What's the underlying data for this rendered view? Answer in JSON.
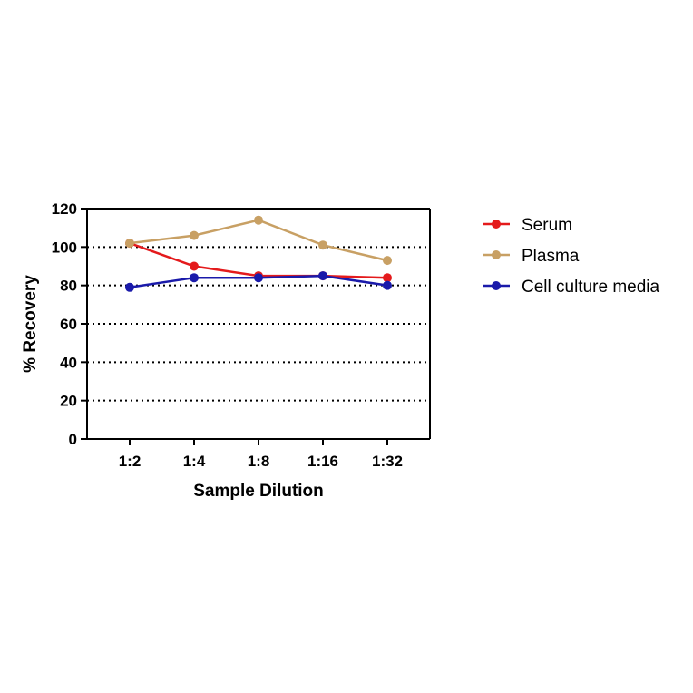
{
  "chart_data": {
    "type": "line",
    "categories": [
      "1:2",
      "1:4",
      "1:8",
      "1:16",
      "1:32"
    ],
    "xlabel": "Sample Dilution",
    "ylabel": "% Recovery",
    "ylim": [
      0,
      120
    ],
    "yticks": [
      0,
      20,
      40,
      60,
      80,
      100,
      120
    ],
    "grid": "horizontal dotted",
    "legend_position": "right",
    "series": [
      {
        "name": "Serum",
        "color": "#e41a1c",
        "values": [
          102,
          90,
          85,
          85,
          84
        ]
      },
      {
        "name": "Plasma",
        "color": "#c8a064",
        "values": [
          102,
          106,
          114,
          101,
          93
        ]
      },
      {
        "name": "Cell culture media",
        "color": "#1a1aaa",
        "values": [
          79,
          84,
          84,
          85,
          80
        ]
      }
    ]
  }
}
